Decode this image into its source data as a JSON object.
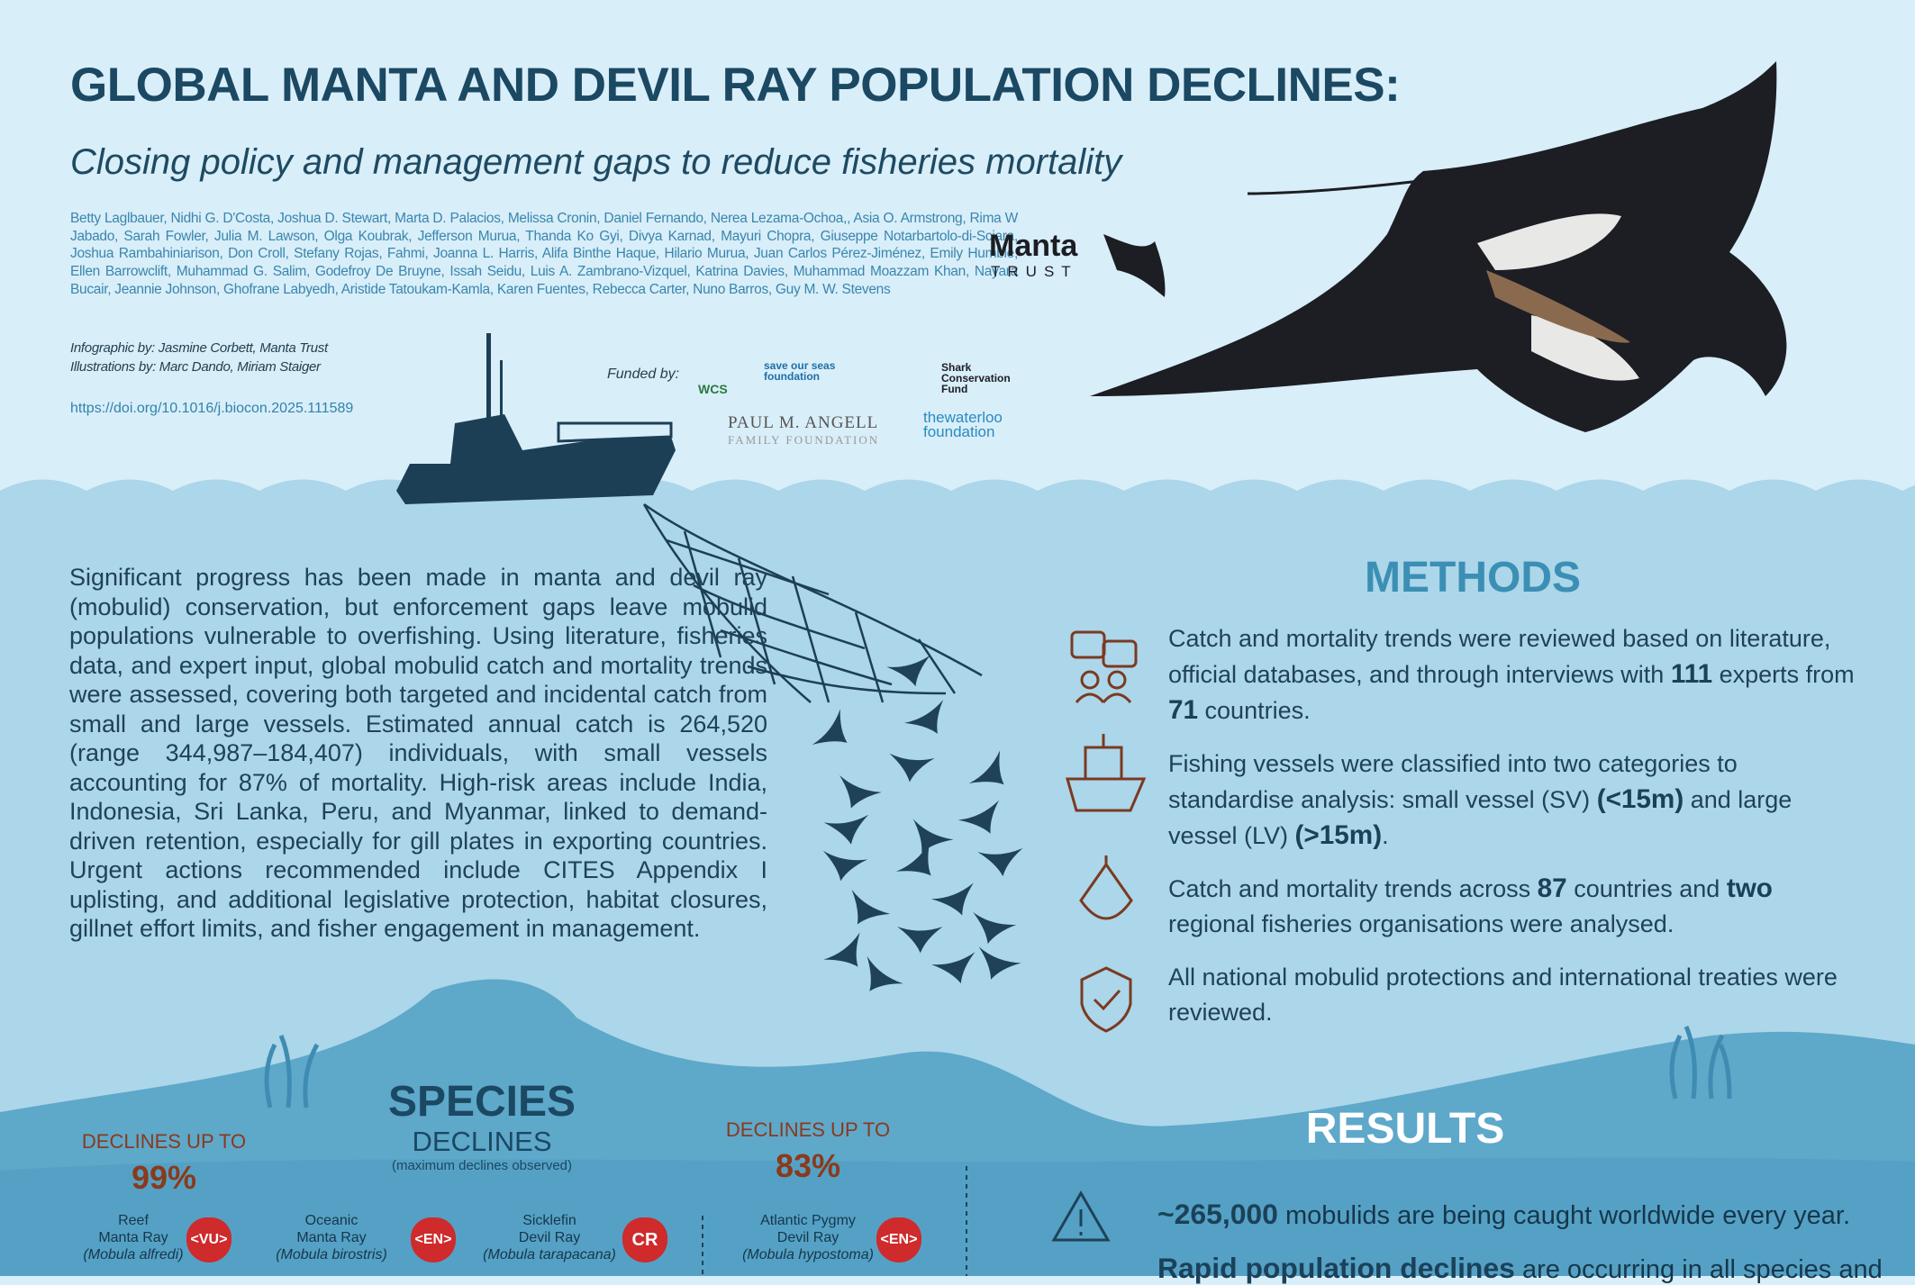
{
  "header": {
    "title": "GLOBAL MANTA AND DEVIL RAY POPULATION DECLINES:",
    "subtitle": "Closing policy and management gaps to reduce fisheries mortality",
    "authors": "Betty Laglbauer, Nidhi G. D'Costa, Joshua D. Stewart, Marta D. Palacios, Melissa Cronin, Daniel Fernando, Nerea Lezama-Ochoa,, Asia O. Armstrong, Rima W Jabado, Sarah Fowler, Julia M. Lawson, Olga Koubrak, Jefferson Murua, Thanda Ko Gyi, Divya Karnad, Mayuri Chopra, Giuseppe Notarbartolo-di-Sciara, Joshua Rambahiniarison, Don Croll, Stefany Rojas, Fahmi, Joanna L. Harris, Alifa Binthe Haque, Hilario Murua, Juan Carlos Pérez-Jiménez, Emily Humble, Ellen Barrowclift, Muhammad G. Salim, Godefroy De Bruyne, Issah Seidu, Luis A. Zambrano-Vizquel, Katrina Davies, Muhammad Moazzam Khan, Nayara Bucair, Jeannie Johnson, Ghofrane Labyedh, Aristide Tatoukam-Kamla, Karen Fuentes, Rebecca Carter, Nuno Barros, Guy M. W. Stevens",
    "infographic_by": "Infographic by: Jasmine Corbett, Manta Trust",
    "illustrations_by": "Illustrations by: Marc Dando, Miriam Staiger",
    "doi": "https://doi.org/10.1016/j.biocon.2025.111589"
  },
  "logo": {
    "name": "Manta",
    "sub": "TRUST"
  },
  "funding": {
    "label": "Funded by:",
    "funders": [
      {
        "lines": [
          "WCS"
        ]
      },
      {
        "lines": [
          "save our seas",
          "foundation"
        ]
      },
      {
        "lines": [
          "Shark",
          "Conservation",
          "Fund"
        ]
      },
      {
        "lines": [
          "PAUL M. ANGELL",
          "FAMILY FOUNDATION"
        ]
      },
      {
        "lines": [
          "thewaterloo",
          "foundation"
        ]
      }
    ]
  },
  "intro": "Significant progress has been made in manta and devil ray (mobulid) conservation, but enforcement gaps leave mobulid populations vulnerable to overfishing. Using literature, fisheries data, and expert input, global mobulid catch and mortality trends were assessed, covering both targeted and incidental catch from small and large vessels. Estimated annual catch is 264,520 (range 344,987–184,407) individuals, with small vessels accounting for 87% of mortality. High-risk areas include India, Indonesia, Sri Lanka, Peru, and Myanmar, linked to demand-driven retention, especially for gill plates in exporting countries. Urgent actions recommended include CITES Appendix I uplisting, and additional legislative protection, habitat closures, gillnet effort limits, and fisher engagement in management.",
  "methods": {
    "title": "METHODS",
    "items": [
      [
        {
          "text": "Catch and mortality trends were reviewed based on literature, official databases, and through interviews with ",
          "bold": false
        },
        {
          "text": "111",
          "bold": true
        },
        {
          "text": " experts from ",
          "bold": false
        },
        {
          "text": "71",
          "bold": true
        },
        {
          "text": " countries.",
          "bold": false
        }
      ],
      [
        {
          "text": "Fishing vessels were classified into two categories to standardise analysis: small vessel (SV) ",
          "bold": false
        },
        {
          "text": "(<15m)",
          "bold": true
        },
        {
          "text": " and large vessel (LV) ",
          "bold": false
        },
        {
          "text": "(>15m)",
          "bold": true
        },
        {
          "text": ".",
          "bold": false
        }
      ],
      [
        {
          "text": "Catch and mortality trends across ",
          "bold": false
        },
        {
          "text": "87",
          "bold": true
        },
        {
          "text": " countries and ",
          "bold": false
        },
        {
          "text": "two",
          "bold": true
        },
        {
          "text": " regional fisheries organisations were analysed.",
          "bold": false
        }
      ],
      [
        {
          "text": "All national mobulid protections and international treaties were reviewed.",
          "bold": false
        }
      ]
    ]
  },
  "species": {
    "title": "SPECIES",
    "subtitle": "DECLINES",
    "note": "(maximum declines observed)",
    "groups": [
      {
        "label": "DECLINES UP TO",
        "value": "99%"
      },
      {
        "label": "DECLINES UP TO",
        "value": "83%"
      }
    ],
    "items": [
      {
        "lines": [
          "Reef",
          "Manta Ray"
        ],
        "latin": "(Mobula alfredi)",
        "status": "<VU>"
      },
      {
        "lines": [
          "Oceanic",
          "Manta Ray"
        ],
        "latin": "(Mobula birostris)",
        "status": "<EN>"
      },
      {
        "lines": [
          "Sicklefin",
          "Devil Ray"
        ],
        "latin": "(Mobula tarapacana)",
        "status": "CR"
      },
      {
        "lines": [
          "Atlantic Pygmy",
          "Devil Ray"
        ],
        "latin": "(Mobula hypostoma)",
        "status": "<EN>"
      }
    ]
  },
  "results": {
    "title": "RESULTS",
    "items": [
      [
        {
          "text": "~265,000",
          "bold": true
        },
        {
          "text": "  mobulids are being caught worldwide every year.",
          "bold": false
        }
      ],
      [
        {
          "text": "Rapid population declines",
          "bold": true
        },
        {
          "text": " are occurring in all species and",
          "bold": false
        }
      ]
    ]
  }
}
